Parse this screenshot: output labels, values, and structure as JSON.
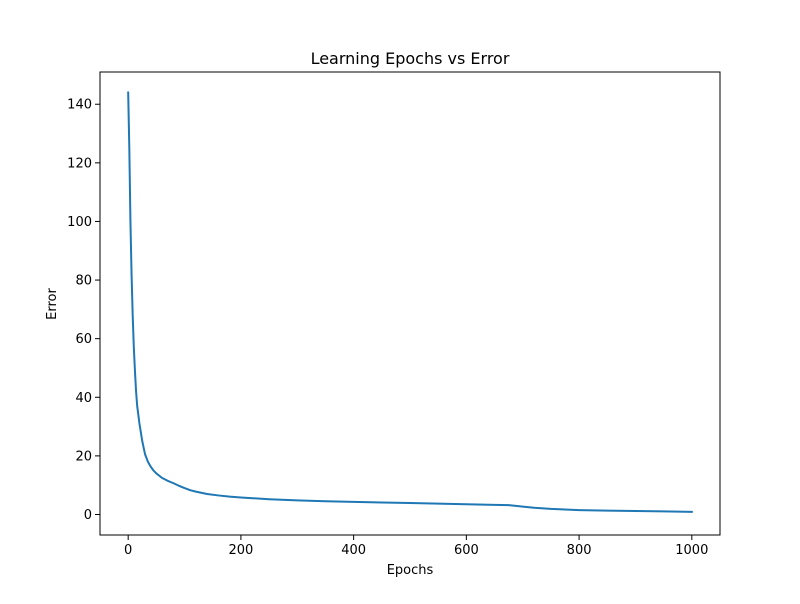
{
  "chart_data": {
    "type": "line",
    "title": "Learning Epochs vs Error",
    "xlabel": "Epochs",
    "ylabel": "Error",
    "xlim": [
      -50,
      1050
    ],
    "ylim": [
      -7,
      151
    ],
    "xticks": [
      0,
      200,
      400,
      600,
      800,
      1000
    ],
    "yticks": [
      0,
      20,
      40,
      60,
      80,
      100,
      120,
      140
    ],
    "xtick_labels": [
      "0",
      "200",
      "400",
      "600",
      "800",
      "1000"
    ],
    "ytick_labels": [
      "0",
      "20",
      "40",
      "60",
      "80",
      "100",
      "120",
      "140"
    ],
    "grid": false,
    "series": [
      {
        "color": "#1f77b4",
        "x": [
          0,
          2,
          4,
          6,
          8,
          10,
          12,
          14,
          16,
          18,
          20,
          25,
          30,
          35,
          40,
          45,
          50,
          60,
          70,
          80,
          90,
          100,
          110,
          120,
          140,
          160,
          180,
          200,
          250,
          300,
          350,
          400,
          450,
          500,
          550,
          600,
          650,
          675,
          690,
          700,
          720,
          750,
          800,
          850,
          900,
          950,
          1000
        ],
        "y": [
          144,
          125,
          100,
          82,
          68,
          57,
          49,
          42,
          37,
          34,
          31,
          25,
          20.5,
          18,
          16.3,
          15,
          14,
          12.5,
          11.5,
          10.7,
          9.8,
          9,
          8.3,
          7.8,
          7,
          6.5,
          6.1,
          5.8,
          5.2,
          4.8,
          4.5,
          4.3,
          4.1,
          3.9,
          3.7,
          3.5,
          3.3,
          3.2,
          2.9,
          2.7,
          2.3,
          1.9,
          1.5,
          1.3,
          1.2,
          1.05,
          0.9
        ]
      }
    ]
  }
}
